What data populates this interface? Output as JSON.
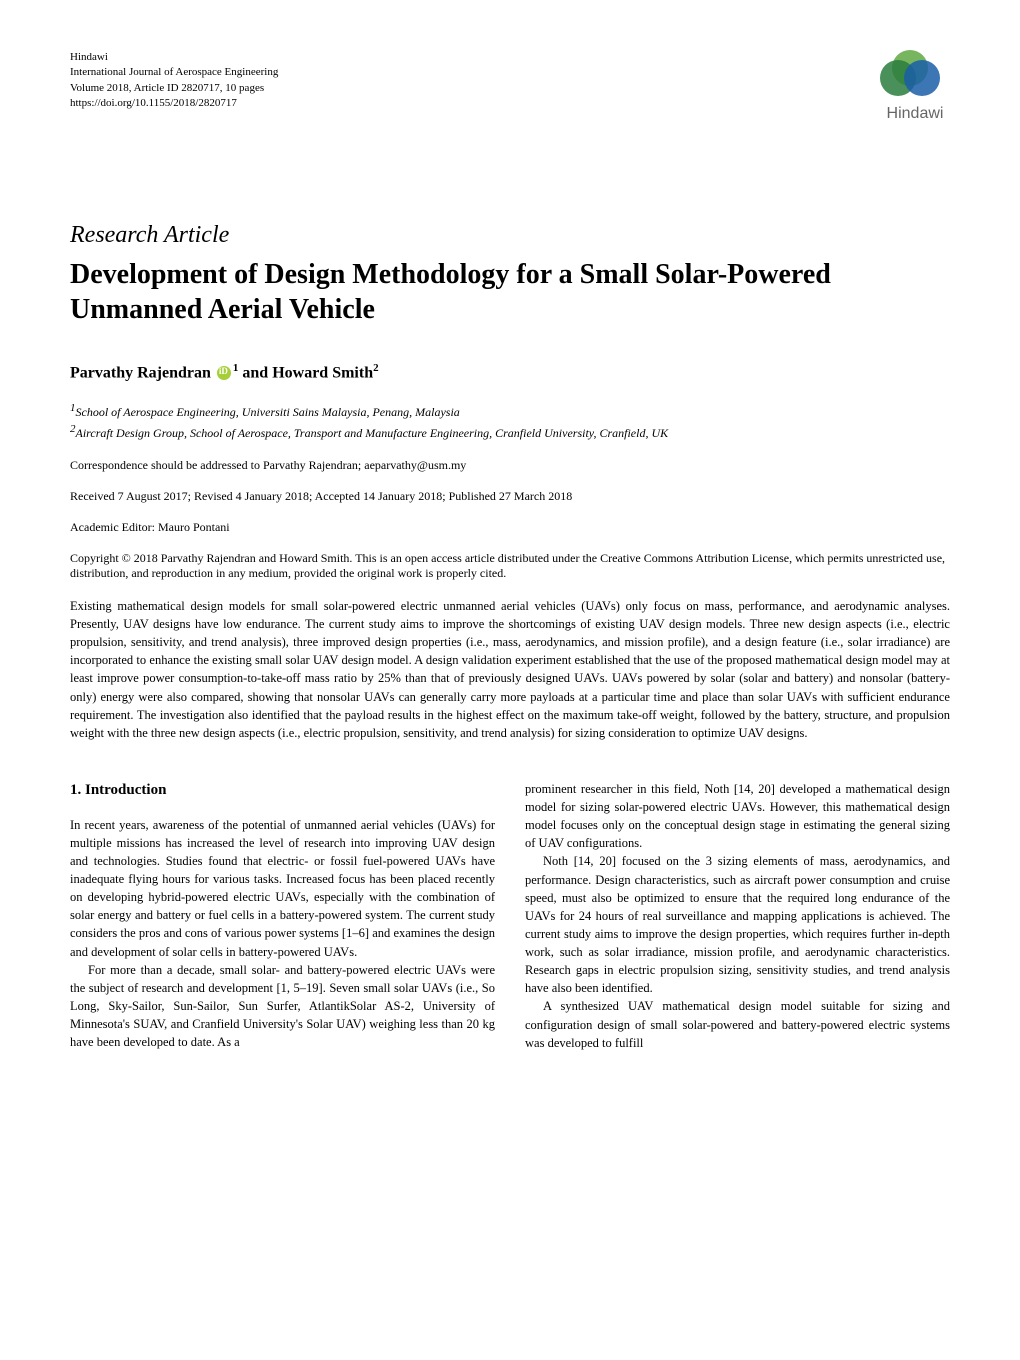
{
  "header": {
    "publisher": "Hindawi",
    "journal": "International Journal of Aerospace Engineering",
    "volume": "Volume 2018, Article ID 2820717, 10 pages",
    "doi": "https://doi.org/10.1155/2018/2820717",
    "logo_name": "Hindawi"
  },
  "article": {
    "type": "Research Article",
    "title": "Development of Design Methodology for a Small Solar-Powered Unmanned Aerial Vehicle"
  },
  "authors": {
    "author1_name": "Parvathy Rajendran",
    "author1_sup": "1",
    "conjunction": " and ",
    "author2_name": "Howard Smith",
    "author2_sup": "2"
  },
  "affiliations": {
    "aff1_sup": "1",
    "aff1": "School of Aerospace Engineering, Universiti Sains Malaysia, Penang, Malaysia",
    "aff2_sup": "2",
    "aff2": "Aircraft Design Group, School of Aerospace, Transport and Manufacture Engineering, Cranfield University, Cranfield, UK"
  },
  "meta": {
    "correspondence": "Correspondence should be addressed to Parvathy Rajendran; aeparvathy@usm.my",
    "dates": "Received 7 August 2017; Revised 4 January 2018; Accepted 14 January 2018; Published 27 March 2018",
    "editor": "Academic Editor: Mauro Pontani",
    "copyright": "Copyright © 2018 Parvathy Rajendran and Howard Smith. This is an open access article distributed under the Creative Commons Attribution License, which permits unrestricted use, distribution, and reproduction in any medium, provided the original work is properly cited."
  },
  "abstract": {
    "text": "Existing mathematical design models for small solar-powered electric unmanned aerial vehicles (UAVs) only focus on mass, performance, and aerodynamic analyses. Presently, UAV designs have low endurance. The current study aims to improve the shortcomings of existing UAV design models. Three new design aspects (i.e., electric propulsion, sensitivity, and trend analysis), three improved design properties (i.e., mass, aerodynamics, and mission profile), and a design feature (i.e., solar irradiance) are incorporated to enhance the existing small solar UAV design model. A design validation experiment established that the use of the proposed mathematical design model may at least improve power consumption-to-take-off mass ratio by 25% than that of previously designed UAVs. UAVs powered by solar (solar and battery) and nonsolar (battery-only) energy were also compared, showing that nonsolar UAVs can generally carry more payloads at a particular time and place than solar UAVs with sufficient endurance requirement. The investigation also identified that the payload results in the highest effect on the maximum take-off weight, followed by the battery, structure, and propulsion weight with the three new design aspects (i.e., electric propulsion, sensitivity, and trend analysis) for sizing consideration to optimize UAV designs."
  },
  "body": {
    "section1_heading": "1. Introduction",
    "left_p1": "In recent years, awareness of the potential of unmanned aerial vehicles (UAVs) for multiple missions has increased the level of research into improving UAV design and technologies. Studies found that electric- or fossil fuel-powered UAVs have inadequate flying hours for various tasks. Increased focus has been placed recently on developing hybrid-powered electric UAVs, especially with the combination of solar energy and battery or fuel cells in a battery-powered system. The current study considers the pros and cons of various power systems [1–6] and examines the design and development of solar cells in battery-powered UAVs.",
    "left_p2": "For more than a decade, small solar- and battery-powered electric UAVs were the subject of research and development [1, 5–19]. Seven small solar UAVs (i.e., So Long, Sky-Sailor, Sun-Sailor, Sun Surfer, AtlantikSolar AS-2, University of Minnesota's SUAV, and Cranfield University's Solar UAV) weighing less than 20 kg have been developed to date. As a",
    "right_p1": "prominent researcher in this field, Noth [14, 20] developed a mathematical design model for sizing solar-powered electric UAVs. However, this mathematical design model focuses only on the conceptual design stage in estimating the general sizing of UAV configurations.",
    "right_p2": "Noth [14, 20] focused on the 3 sizing elements of mass, aerodynamics, and performance. Design characteristics, such as aircraft power consumption and cruise speed, must also be optimized to ensure that the required long endurance of the UAVs for 24 hours of real surveillance and mapping applications is achieved. The current study aims to improve the design properties, which requires further in-depth work, such as solar irradiance, mission profile, and aerodynamic characteristics. Research gaps in electric propulsion sizing, sensitivity studies, and trend analysis have also been identified.",
    "right_p3": "A synthesized UAV mathematical design model suitable for sizing and configuration design of small solar-powered and battery-powered electric systems was developed to fulfill"
  },
  "colors": {
    "text": "#000000",
    "background": "#ffffff",
    "logo_green1": "#5fa843",
    "logo_green2": "#2a7d3d",
    "logo_blue": "#1a5ea8",
    "logo_text": "#666666",
    "orcid": "#a6ce39"
  },
  "typography": {
    "body_font": "Times New Roman",
    "header_fontsize": 11,
    "article_type_fontsize": 24,
    "title_fontsize": 28,
    "authors_fontsize": 16,
    "affiliations_fontsize": 12,
    "meta_fontsize": 12,
    "abstract_fontsize": 12.5,
    "body_fontsize": 12.5,
    "section_heading_fontsize": 15
  }
}
